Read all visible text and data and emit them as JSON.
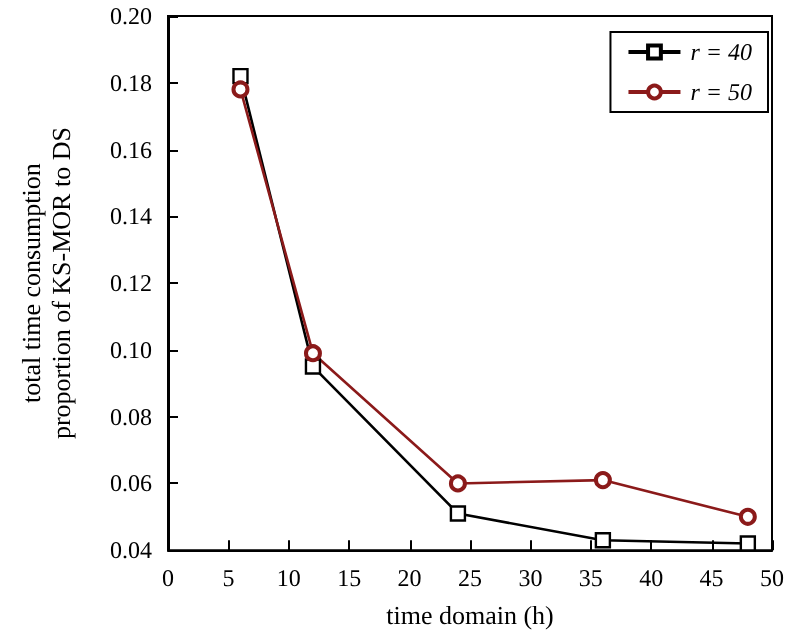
{
  "chart_data": {
    "type": "line",
    "xlabel": "time domain (h)",
    "ylabel": "total time consumption\nproportion of KS-MOR to DS",
    "x": [
      6,
      12,
      24,
      36,
      48
    ],
    "series": [
      {
        "name": "r = 40",
        "color": "#000000",
        "marker": "square",
        "values": [
          0.182,
          0.095,
          0.051,
          0.043,
          0.042
        ]
      },
      {
        "name": "r = 50",
        "color": "#8b1a1a",
        "marker": "circle",
        "values": [
          0.178,
          0.099,
          0.06,
          0.061,
          0.05
        ]
      }
    ],
    "xlim": [
      0,
      50
    ],
    "xticks": [
      0,
      5,
      10,
      15,
      20,
      25,
      30,
      35,
      40,
      45,
      50
    ],
    "ylim": [
      0.04,
      0.2
    ],
    "yticks": [
      0.04,
      0.06,
      0.08,
      {
        "value": 0.1,
        "label": "0.10"
      },
      0.12,
      0.14,
      0.16,
      0.18,
      {
        "value": 0.2,
        "label": "0.20"
      }
    ],
    "grid": false,
    "legend": "top right",
    "line_style": "solid"
  }
}
